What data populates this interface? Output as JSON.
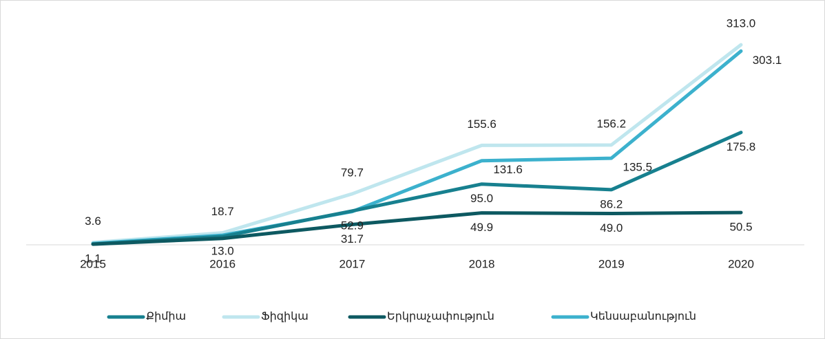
{
  "chart_data": {
    "type": "line",
    "categories": [
      "2015",
      "2016",
      "2017",
      "2018",
      "2019",
      "2020"
    ],
    "ylim": [
      0,
      340
    ],
    "legend": "bottom",
    "series": [
      {
        "name": "Քիմիա",
        "color": "#17808f",
        "values": [
          1.1,
          13.0,
          52.9,
          95.0,
          86.2,
          175.8
        ],
        "value_labels": [
          "1.1",
          "13.0",
          "52.9",
          "95.0",
          "86.2",
          "175.8"
        ]
      },
      {
        "name": "Ֆիզիկա",
        "color": "#bfe6ee",
        "values": [
          3.6,
          18.7,
          79.7,
          155.6,
          156.2,
          313.0
        ],
        "value_labels": [
          "3.6",
          "18.7",
          "79.7",
          "155.6",
          "156.2",
          "313.0"
        ]
      },
      {
        "name": "Երկրաչափություն",
        "color": "#0d5961",
        "values": [
          1.0,
          10.0,
          31.7,
          49.9,
          49.0,
          50.5
        ],
        "value_labels": [
          null,
          null,
          "31.7",
          "49.9",
          "49.0",
          "50.5"
        ]
      },
      {
        "name": "Կենսաբանություն",
        "color": "#3cb1cd",
        "values": [
          2.0,
          15.0,
          52.0,
          131.6,
          135.5,
          303.1
        ],
        "value_labels": [
          null,
          null,
          null,
          "131.6",
          "135.5",
          "303.1"
        ]
      }
    ]
  }
}
